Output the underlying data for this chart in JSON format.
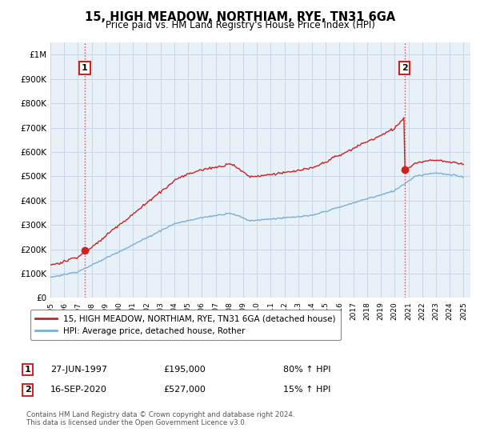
{
  "title": "15, HIGH MEADOW, NORTHIAM, RYE, TN31 6GA",
  "subtitle": "Price paid vs. HM Land Registry's House Price Index (HPI)",
  "ylim": [
    0,
    1050000
  ],
  "yticks": [
    0,
    100000,
    200000,
    300000,
    400000,
    500000,
    600000,
    700000,
    800000,
    900000,
    1000000
  ],
  "ytick_labels": [
    "£0",
    "£100K",
    "£200K",
    "£300K",
    "£400K",
    "£500K",
    "£600K",
    "£700K",
    "£800K",
    "£900K",
    "£1M"
  ],
  "xlim": [
    1995,
    2025.5
  ],
  "sale1_date": 1997.49,
  "sale1_price": 195000,
  "sale1_label": "1",
  "sale2_date": 2020.71,
  "sale2_price": 527000,
  "sale2_label": "2",
  "hpi_color": "#7bafd4",
  "price_color": "#cc2222",
  "grid_color": "#c8d8e8",
  "plot_bg_color": "#e8f0f8",
  "background_color": "#ffffff",
  "legend_label_price": "15, HIGH MEADOW, NORTHIAM, RYE, TN31 6GA (detached house)",
  "legend_label_hpi": "HPI: Average price, detached house, Rother",
  "note1_num": "1",
  "note1_date": "27-JUN-1997",
  "note1_price": "£195,000",
  "note1_detail": "80% ↑ HPI",
  "note2_num": "2",
  "note2_date": "16-SEP-2020",
  "note2_price": "£527,000",
  "note2_detail": "15% ↑ HPI",
  "footer": "Contains HM Land Registry data © Crown copyright and database right 2024.\nThis data is licensed under the Open Government Licence v3.0."
}
